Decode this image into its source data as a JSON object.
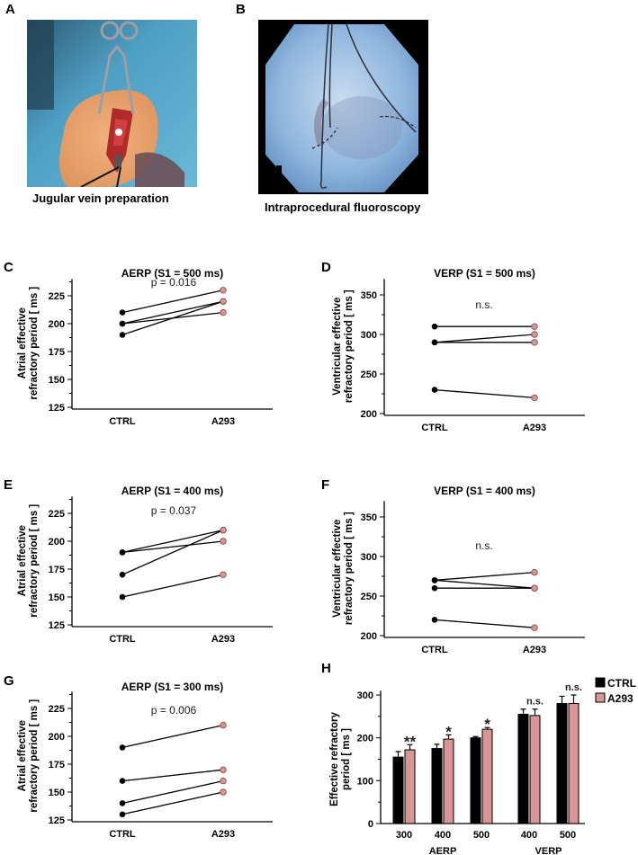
{
  "panels": {
    "A": {
      "letter": "A",
      "caption": "Jugular vein preparation",
      "image": "surgical-photo-jugular-vein"
    },
    "B": {
      "letter": "B",
      "caption": "Intraprocedural fluoroscopy",
      "image": "fluoroscopy-image"
    }
  },
  "colors": {
    "ctrl": "#000000",
    "a293": "#d99593",
    "a293_stroke": "#7a4a48"
  },
  "chart_data": [
    {
      "id": "C",
      "letter": "C",
      "type": "line",
      "title": "AERP (S1 = 500 ms)",
      "ylabel": "Atrial effective refractory period [ ms ]",
      "ylabel_lines": [
        "Atrial effective",
        "refractory period [ ms ]"
      ],
      "categories": [
        "CTRL",
        "A293"
      ],
      "yticks": [
        125,
        150,
        175,
        200,
        225
      ],
      "ylim": [
        125,
        240
      ],
      "annotation": "p = 0.016",
      "pairs": [
        [
          210,
          230
        ],
        [
          200,
          220
        ],
        [
          200,
          210
        ],
        [
          190,
          220
        ]
      ]
    },
    {
      "id": "D",
      "letter": "D",
      "type": "line",
      "title": "VERP (S1 = 500 ms)",
      "ylabel": "Ventricular effective refractory period [ ms ]",
      "ylabel_lines": [
        "Ventricular effective",
        "refractory period [ ms ]"
      ],
      "categories": [
        "CTRL",
        "A293"
      ],
      "yticks": [
        200,
        250,
        300,
        350
      ],
      "ylim": [
        200,
        370
      ],
      "annotation": "n.s.",
      "pairs": [
        [
          310,
          310
        ],
        [
          290,
          300
        ],
        [
          290,
          290
        ],
        [
          230,
          220
        ]
      ]
    },
    {
      "id": "E",
      "letter": "E",
      "type": "line",
      "title": "AERP (S1 = 400 ms)",
      "ylabel": "Atrial effective refractory period [ ms ]",
      "ylabel_lines": [
        "Atrial effective",
        "refractory period [ ms ]"
      ],
      "categories": [
        "CTRL",
        "A293"
      ],
      "yticks": [
        125,
        150,
        175,
        200,
        225
      ],
      "ylim": [
        125,
        240
      ],
      "annotation": "p = 0.037",
      "pairs": [
        [
          190,
          210
        ],
        [
          190,
          200
        ],
        [
          170,
          210
        ],
        [
          150,
          170
        ]
      ]
    },
    {
      "id": "F",
      "letter": "F",
      "type": "line",
      "title": "VERP (S1 = 400 ms)",
      "ylabel": "Ventricular effective refractory period [ ms ]",
      "ylabel_lines": [
        "Ventricular effective",
        "refractory period [ ms ]"
      ],
      "categories": [
        "CTRL",
        "A293"
      ],
      "yticks": [
        200,
        250,
        300,
        350
      ],
      "ylim": [
        200,
        370
      ],
      "annotation": "n.s.",
      "pairs": [
        [
          270,
          280
        ],
        [
          270,
          260
        ],
        [
          260,
          260
        ],
        [
          220,
          210
        ]
      ]
    },
    {
      "id": "G",
      "letter": "G",
      "type": "line",
      "title": "AERP (S1 = 300 ms)",
      "ylabel": "Atrial effective refractory period [ ms ]",
      "ylabel_lines": [
        "Atrial effective",
        "refractory period [ ms ]"
      ],
      "categories": [
        "CTRL",
        "A293"
      ],
      "yticks": [
        125,
        150,
        175,
        200,
        225
      ],
      "ylim": [
        125,
        240
      ],
      "annotation": "p = 0.006",
      "pairs": [
        [
          190,
          210
        ],
        [
          160,
          170
        ],
        [
          140,
          160
        ],
        [
          130,
          150
        ]
      ]
    },
    {
      "id": "H",
      "letter": "H",
      "type": "bar",
      "title": "",
      "ylabel": "Effective refractory period [ ms ]",
      "ylabel_lines": [
        "Effective refractory",
        "period [ ms ]"
      ],
      "yticks": [
        0,
        100,
        200,
        300
      ],
      "ylim": [
        0,
        310
      ],
      "categories": [
        "300",
        "400",
        "500",
        "400",
        "500"
      ],
      "groups": [
        {
          "label": "AERP",
          "span": [
            0,
            2
          ]
        },
        {
          "label": "VERP",
          "span": [
            3,
            4
          ]
        }
      ],
      "series": [
        {
          "name": "CTRL",
          "values": [
            155,
            175,
            200,
            255,
            280
          ],
          "errors": [
            13,
            10,
            3,
            12,
            17
          ]
        },
        {
          "name": "A293",
          "values": [
            172,
            197,
            220,
            252,
            280
          ],
          "errors": [
            12,
            10,
            4,
            15,
            20
          ]
        }
      ],
      "significance": [
        "**",
        "*",
        "*",
        "n.s.",
        "n.s."
      ],
      "legend": [
        "CTRL",
        "A293"
      ],
      "legend_position": "top-right"
    }
  ]
}
